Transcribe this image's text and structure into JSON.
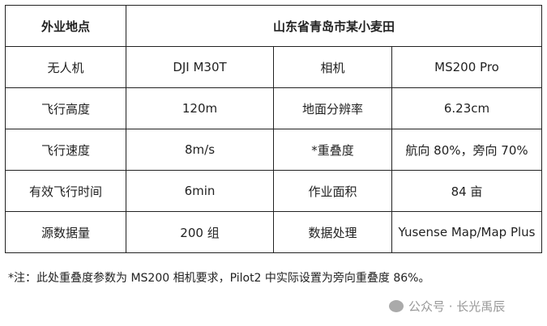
{
  "table": {
    "header": {
      "label": "外业地点",
      "value": "山东省青岛市某小麦田"
    },
    "rows": [
      [
        "无人机",
        "DJI M30T",
        "相机",
        "MS200 Pro"
      ],
      [
        "飞行高度",
        "120m",
        "地面分辨率",
        "6.23cm"
      ],
      [
        "飞行速度",
        "8m/s",
        "*重叠度",
        "航向 80%，旁向 70%"
      ],
      [
        "有效飞行时间",
        "6min",
        "作业面积",
        "84 亩"
      ],
      [
        "源数据量",
        "200 组",
        "数据处理",
        "Yusense Map/Map Plus"
      ]
    ]
  },
  "footnote": "*注：此处重叠度参数为 MS200 相机要求，Pilot2 中实际设置为旁向重叠度 86%。",
  "watermark": {
    "icon": "wechat-icon",
    "text": "公众号 · 长光禹辰"
  }
}
